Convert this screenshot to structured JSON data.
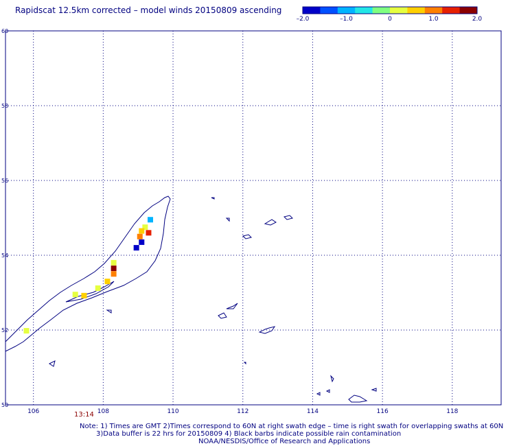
{
  "title": "Rapidscat 12.5km corrected – model winds 20150809 ascending",
  "colorbar": {
    "min": -2.0,
    "max": 2.0,
    "ticks": [
      "–2.0",
      "–1.0",
      "0",
      "1.0",
      "2.0"
    ],
    "tick_values": [
      -2.0,
      -1.0,
      0,
      1.0,
      2.0
    ],
    "colors": [
      "#0000c8",
      "#0050ff",
      "#00b4ff",
      "#22e6e6",
      "#80ff80",
      "#e6ff40",
      "#ffd000",
      "#ff8000",
      "#e62000",
      "#8b0000"
    ]
  },
  "map": {
    "lon_range": [
      105.2,
      119.4
    ],
    "lat_range": [
      50,
      60
    ],
    "lon_ticks": [
      106,
      108,
      110,
      112,
      114,
      116,
      118
    ],
    "lat_ticks": [
      50,
      52,
      54,
      56,
      58,
      60
    ],
    "lon_tick_labels": [
      "106",
      "108",
      "110",
      "112",
      "114",
      "116",
      "118"
    ],
    "lat_tick_labels": [
      "50",
      "52",
      "54",
      "56",
      "58",
      "60"
    ],
    "grid": "dotted",
    "wind_cells": [
      {
        "lon": 109.35,
        "lat": 54.95,
        "value": -1.0
      },
      {
        "lon": 109.2,
        "lat": 54.75,
        "value": 0.2
      },
      {
        "lon": 109.1,
        "lat": 54.65,
        "value": 0.6
      },
      {
        "lon": 109.3,
        "lat": 54.6,
        "value": 1.2
      },
      {
        "lon": 109.05,
        "lat": 54.5,
        "value": 0.8
      },
      {
        "lon": 109.1,
        "lat": 54.35,
        "value": -2.0
      },
      {
        "lon": 108.95,
        "lat": 54.2,
        "value": -2.0
      },
      {
        "lon": 108.3,
        "lat": 53.8,
        "value": 0.2
      },
      {
        "lon": 108.3,
        "lat": 53.65,
        "value": 2.0
      },
      {
        "lon": 108.3,
        "lat": 53.5,
        "value": 0.8
      },
      {
        "lon": 108.12,
        "lat": 53.3,
        "value": 0.6
      },
      {
        "lon": 107.85,
        "lat": 53.12,
        "value": 0.2
      },
      {
        "lon": 107.2,
        "lat": 52.95,
        "value": 0.2
      },
      {
        "lon": 107.45,
        "lat": 52.92,
        "value": 0.4
      },
      {
        "lon": 105.8,
        "lat": 51.98,
        "value": 0.2
      }
    ]
  },
  "time_label": "13:14",
  "notes": [
    "Note: 1) Times are GMT 2)Times correspond to 60N at right swath edge – time is right swath for overlapping swaths at 60N",
    "3)Data buffer is 22 hrs for 20150809 4) Black barbs indicate possible rain contamination",
    "NOAA/NESDIS/Office of Research and Applications"
  ]
}
